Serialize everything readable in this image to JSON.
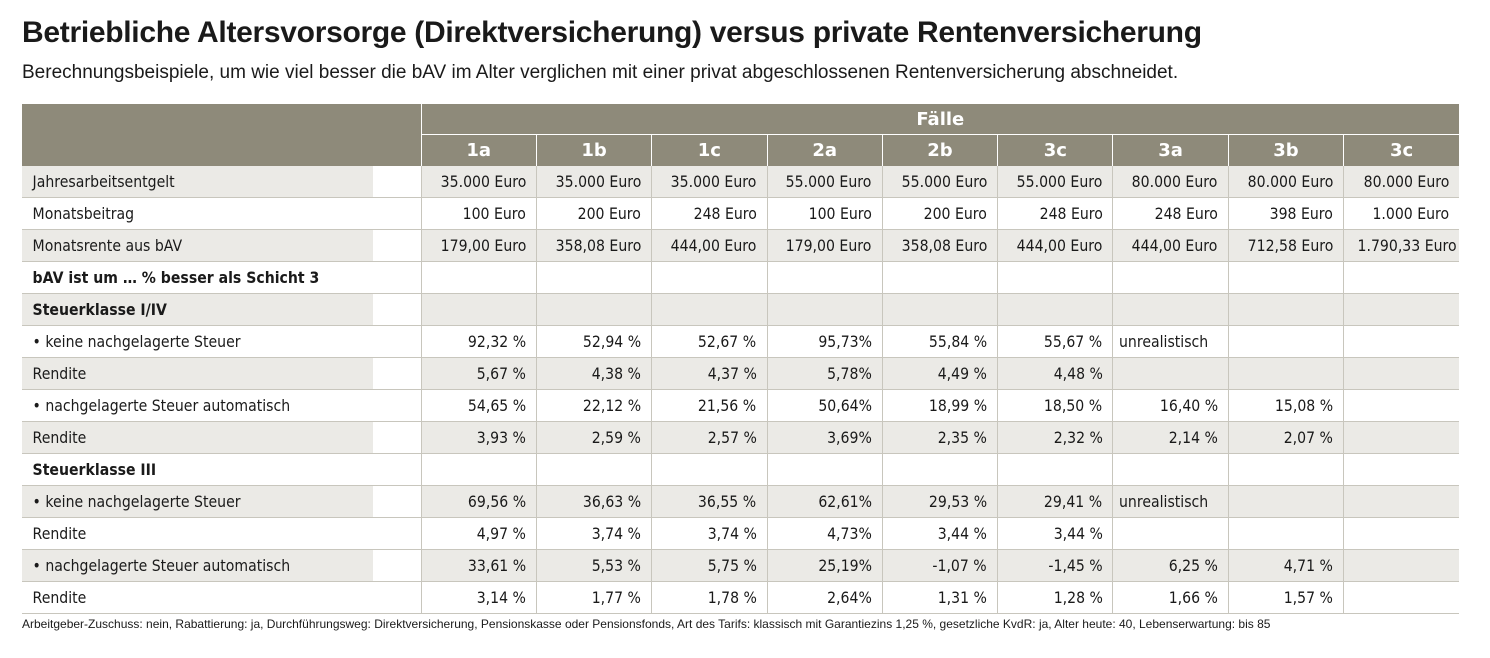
{
  "title": "Betriebliche Altersvorsorge (Direktversicherung) versus private Rentenversicherung",
  "subtitle": "Berechnungsbeispiele, um wie viel besser die bAV im Alter verglichen mit einer privat abgeschlossenen Rentenversicherung abschneidet.",
  "table": {
    "group_header": "Fälle",
    "columns": [
      "1a",
      "1b",
      "1c",
      "2a",
      "2b",
      "3c",
      "3a",
      "3b",
      "3c"
    ],
    "rows": [
      {
        "label": "Jahresarbeitsentgelt",
        "shade": true,
        "bold": false,
        "values": [
          "35.000 Euro",
          "35.000 Euro",
          "35.000 Euro",
          "55.000 Euro",
          "55.000 Euro",
          "55.000 Euro",
          "80.000 Euro",
          "80.000 Euro",
          "80.000 Euro"
        ]
      },
      {
        "label": "Monatsbeitrag",
        "shade": false,
        "bold": false,
        "values": [
          "100 Euro",
          "200 Euro",
          "248 Euro",
          "100 Euro",
          "200 Euro",
          "248 Euro",
          "248 Euro",
          "398 Euro",
          "1.000 Euro"
        ]
      },
      {
        "label": "Monatsrente aus bAV",
        "shade": true,
        "bold": false,
        "values": [
          "179,00 Euro",
          "358,08 Euro",
          "444,00 Euro",
          "179,00 Euro",
          "358,08 Euro",
          "444,00 Euro",
          "444,00 Euro",
          "712,58 Euro",
          "1.790,33 Euro"
        ]
      },
      {
        "label": "bAV ist um … % besser als Schicht 3",
        "shade": false,
        "bold": true,
        "values": [
          "",
          "",
          "",
          "",
          "",
          "",
          "",
          "",
          ""
        ]
      },
      {
        "label": "Steuerklasse I/IV",
        "shade": true,
        "bold": true,
        "values": [
          "",
          "",
          "",
          "",
          "",
          "",
          "",
          "",
          ""
        ]
      },
      {
        "label": "• keine nachgelagerte Steuer",
        "shade": false,
        "bold": false,
        "values": [
          "92,32 %",
          "52,94 %",
          "52,67 %",
          "95,73%",
          "55,84 %",
          "55,67 %",
          "unrealistisch",
          "",
          ""
        ]
      },
      {
        "label": "Rendite",
        "shade": true,
        "bold": false,
        "values": [
          "5,67 %",
          "4,38 %",
          "4,37 %",
          "5,78%",
          "4,49 %",
          "4,48 %",
          "",
          "",
          ""
        ]
      },
      {
        "label": "• nachgelagerte Steuer automatisch",
        "shade": false,
        "bold": false,
        "values": [
          "54,65 %",
          "22,12 %",
          "21,56 %",
          "50,64%",
          "18,99 %",
          "18,50 %",
          "16,40 %",
          "15,08 %",
          ""
        ]
      },
      {
        "label": "Rendite",
        "shade": true,
        "bold": false,
        "values": [
          "3,93 %",
          "2,59 %",
          "2,57 %",
          "3,69%",
          "2,35 %",
          "2,32 %",
          "2,14 %",
          "2,07 %",
          ""
        ]
      },
      {
        "label": "Steuerklasse III",
        "shade": false,
        "bold": true,
        "values": [
          "",
          "",
          "",
          "",
          "",
          "",
          "",
          "",
          ""
        ]
      },
      {
        "label": "• keine nachgelagerte Steuer",
        "shade": true,
        "bold": false,
        "values": [
          "69,56 %",
          "36,63 %",
          "36,55 %",
          "62,61%",
          "29,53 %",
          "29,41 %",
          "unrealistisch",
          "",
          ""
        ]
      },
      {
        "label": "Rendite",
        "shade": false,
        "bold": false,
        "values": [
          "4,97 %",
          "3,74 %",
          "3,74 %",
          "4,73%",
          "3,44 %",
          "3,44 %",
          "",
          "",
          ""
        ]
      },
      {
        "label": "• nachgelagerte Steuer automatisch",
        "shade": true,
        "bold": false,
        "values": [
          "33,61 %",
          "5,53 %",
          "5,75 %",
          "25,19%",
          "-1,07 %",
          "-1,45 %",
          "6,25 %",
          "4,71 %",
          ""
        ]
      },
      {
        "label": "Rendite",
        "shade": false,
        "bold": false,
        "values": [
          "3,14 %",
          "1,77 %",
          "1,78 %",
          "2,64%",
          "1,31 %",
          "1,28 %",
          "1,66 %",
          "1,57 %",
          ""
        ]
      }
    ]
  },
  "footnote": "Arbeitgeber-Zuschuss: nein, Rabattierung: ja, Durchführungsweg: Direktversicherung, Pensionskasse oder Pensionsfonds, Art des Tarifs: klassisch mit Garantiezins 1,25 %, gesetzliche KvdR: ja, Alter heute: 40, Lebenserwartung: bis 85",
  "colors": {
    "header_bg": "#8e8a7a",
    "row_shade": "#ebeae6"
  }
}
